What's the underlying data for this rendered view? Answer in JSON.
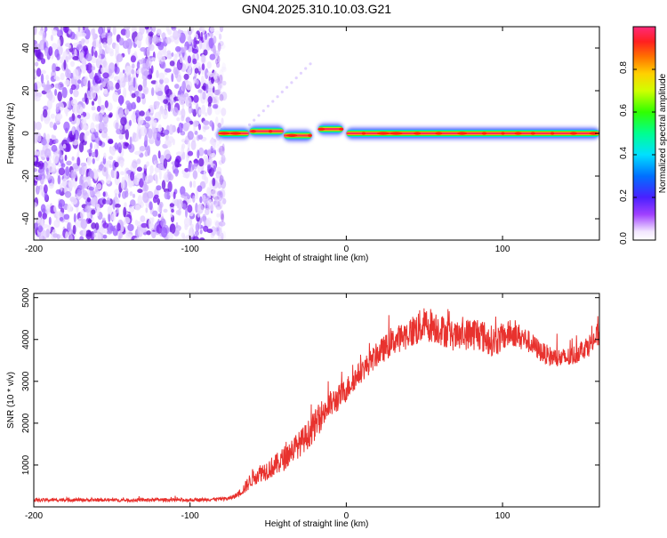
{
  "title": "GN04.2025.310.10.03.G21",
  "colors": {
    "snr_line": "#e8322e",
    "noise_purple": "#7a1ff0",
    "ridge_red": "#ff2a55",
    "ridge_green": "#30e830",
    "ridge_blue": "#2050ff"
  },
  "chart_data": [
    {
      "type": "heatmap",
      "name": "spectrogram",
      "title": "GN04.2025.310.10.03.G21",
      "xlabel": "Height of straight line (km)",
      "ylabel": "Frequency (Hz)",
      "xlim": [
        -200,
        162
      ],
      "ylim": [
        -50,
        50
      ],
      "x_ticks": [
        -200,
        -100,
        0,
        100
      ],
      "x_tick_labels": [
        "-200",
        "-100",
        "0",
        "100"
      ],
      "y_ticks": [
        -40,
        -20,
        0,
        20,
        40
      ],
      "y_tick_labels": [
        "-40",
        "-20",
        "0",
        "20",
        "40"
      ],
      "noise_region_x": [
        -200,
        -78
      ],
      "ridge_frequency": 0,
      "ridge_x": [
        -82,
        162
      ],
      "ridge_segments": [
        {
          "x": [
            -82,
            -62
          ],
          "f": 0
        },
        {
          "x": [
            -62,
            -40
          ],
          "f": 1
        },
        {
          "x": [
            -40,
            -22
          ],
          "f": -1
        },
        {
          "x": [
            -18,
            -2
          ],
          "f": 2
        },
        {
          "x": [
            0,
            162
          ],
          "f": 0
        }
      ],
      "colorbar": {
        "label": "Normalized spectral amplitude",
        "range": [
          0,
          1
        ],
        "ticks": [
          0.0,
          0.2,
          0.4,
          0.6,
          0.8
        ],
        "tick_labels": [
          "0.0",
          "0.2",
          "0.4",
          "0.6",
          "0.8"
        ]
      }
    },
    {
      "type": "line",
      "name": "snr",
      "xlabel": "Height of straight line (km)",
      "ylabel": "SNR (10 * v/v)",
      "xlim": [
        -200,
        162
      ],
      "ylim": [
        0,
        5100
      ],
      "x_ticks": [
        -200,
        -100,
        0,
        100
      ],
      "x_tick_labels": [
        "-200",
        "-100",
        "0",
        "100"
      ],
      "y_ticks": [
        1000,
        2000,
        3000,
        4000,
        5000
      ],
      "y_tick_labels": [
        "1000",
        "2000",
        "3000",
        "4000",
        "5000"
      ],
      "series": [
        {
          "name": "SNR",
          "x": [
            -200,
            -180,
            -160,
            -140,
            -120,
            -100,
            -90,
            -80,
            -75,
            -70,
            -65,
            -60,
            -55,
            -50,
            -45,
            -40,
            -35,
            -30,
            -25,
            -20,
            -15,
            -10,
            -5,
            0,
            5,
            10,
            15,
            20,
            25,
            30,
            35,
            40,
            45,
            50,
            55,
            60,
            65,
            70,
            75,
            80,
            85,
            90,
            95,
            100,
            105,
            110,
            115,
            120,
            125,
            130,
            135,
            140,
            145,
            150,
            155,
            160,
            162
          ],
          "values": [
            160,
            170,
            165,
            160,
            170,
            165,
            175,
            190,
            200,
            280,
            450,
            700,
            820,
            900,
            1000,
            1150,
            1350,
            1500,
            1700,
            1950,
            2250,
            2450,
            2600,
            2800,
            3050,
            3250,
            3450,
            3650,
            3800,
            3950,
            4050,
            4150,
            4250,
            4350,
            4350,
            4250,
            4150,
            4050,
            4100,
            4150,
            4150,
            4000,
            3950,
            4050,
            4150,
            4100,
            4000,
            3850,
            3700,
            3600,
            3550,
            3550,
            3600,
            3750,
            3850,
            4050,
            4150
          ],
          "noise_amplitude": [
            60,
            60,
            55,
            60,
            60,
            60,
            60,
            60,
            70,
            90,
            200,
            300,
            320,
            350,
            380,
            420,
            450,
            450,
            480,
            520,
            520,
            480,
            450,
            420,
            400,
            380,
            400,
            420,
            450,
            450,
            480,
            520,
            600,
            600,
            600,
            550,
            520,
            500,
            500,
            600,
            600,
            550,
            520,
            500,
            450,
            420,
            400,
            380,
            350,
            350,
            350,
            350,
            350,
            350,
            380,
            420,
            450
          ]
        }
      ]
    }
  ]
}
